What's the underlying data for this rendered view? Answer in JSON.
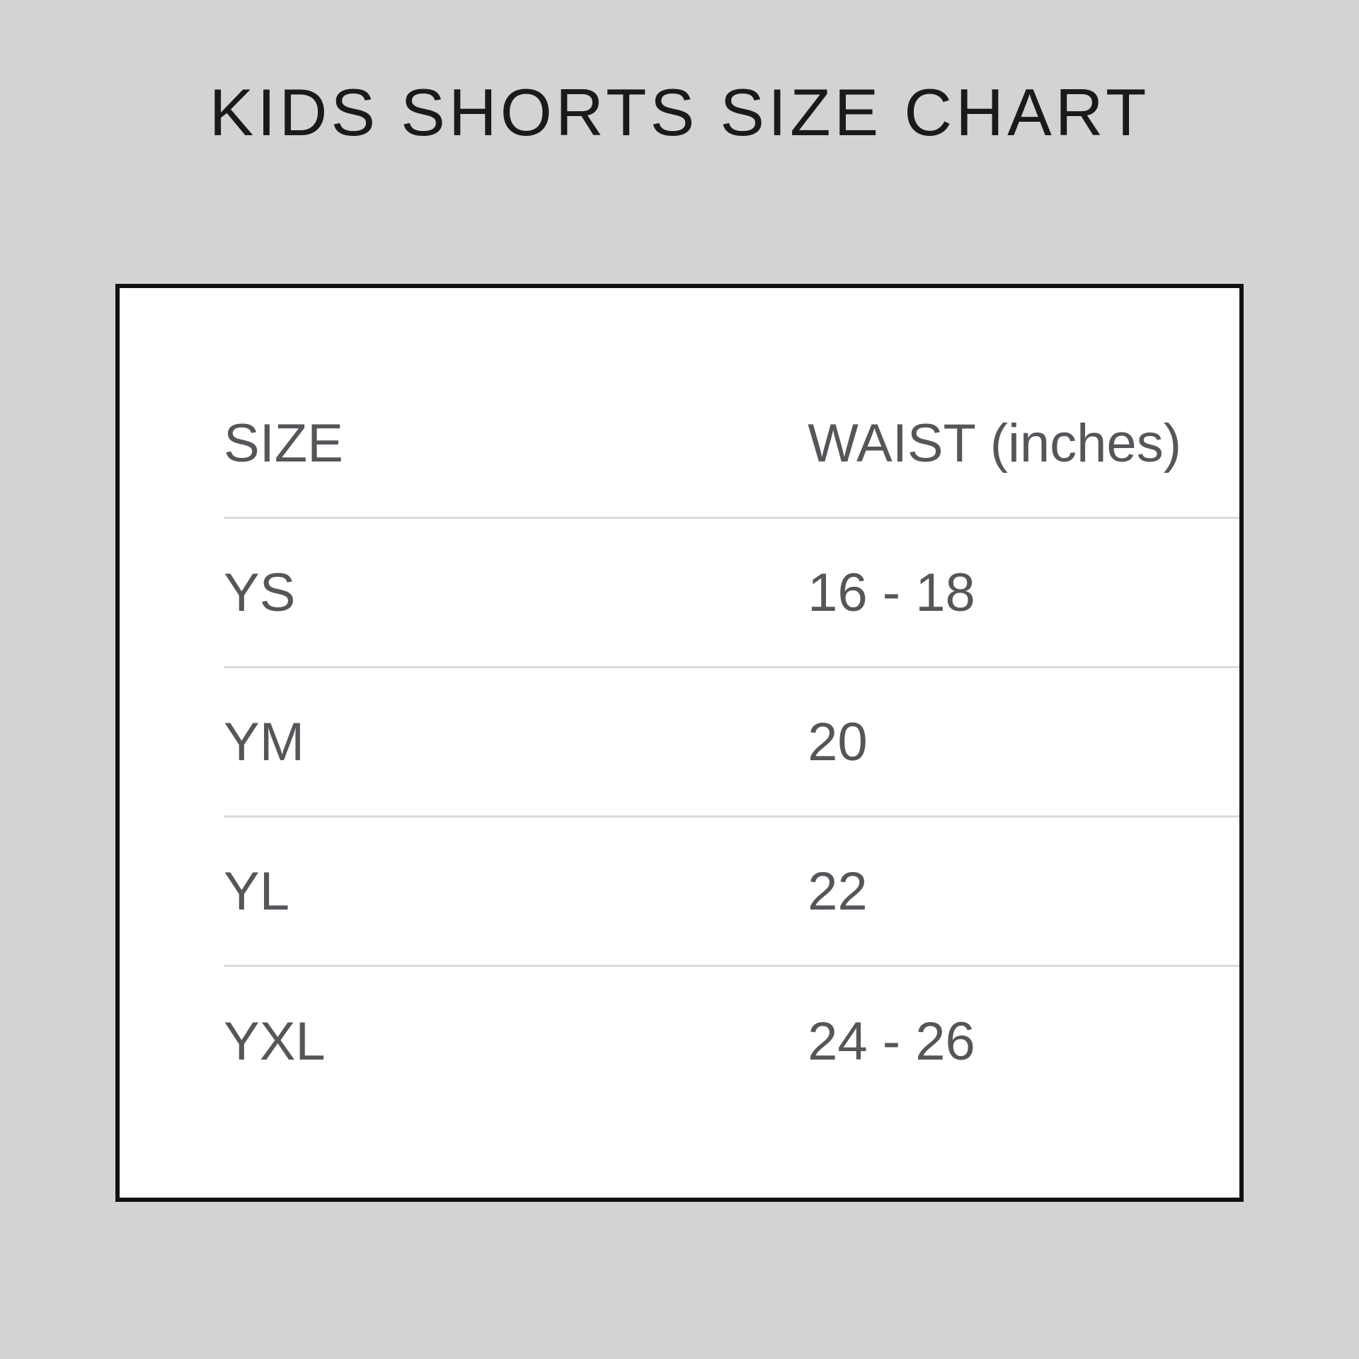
{
  "title": "KIDS SHORTS SIZE CHART",
  "table": {
    "headers": [
      "SIZE",
      "WAIST (inches)"
    ],
    "rows": [
      {
        "size": "YS",
        "waist": "16 - 18"
      },
      {
        "size": "YM",
        "waist": "20"
      },
      {
        "size": "YL",
        "waist": "22"
      },
      {
        "size": "YXL",
        "waist": "24 - 26"
      }
    ]
  },
  "colors": {
    "background": "#d2d3d5",
    "panel": "#ffffff",
    "panel_border": "#111111",
    "title_text": "#1a1a1a",
    "table_text": "#55565a",
    "divider": "#d9dadb"
  },
  "chart_data": {
    "type": "table",
    "title": "KIDS SHORTS SIZE CHART",
    "columns": [
      "SIZE",
      "WAIST (inches)"
    ],
    "rows": [
      [
        "YS",
        "16 - 18"
      ],
      [
        "YM",
        "20"
      ],
      [
        "YL",
        "22"
      ],
      [
        "YXL",
        "24 - 26"
      ]
    ],
    "waist_numeric_inches": {
      "YS": [
        16,
        18
      ],
      "YM": [
        20
      ],
      "YL": [
        22
      ],
      "YXL": [
        24,
        26
      ]
    }
  }
}
